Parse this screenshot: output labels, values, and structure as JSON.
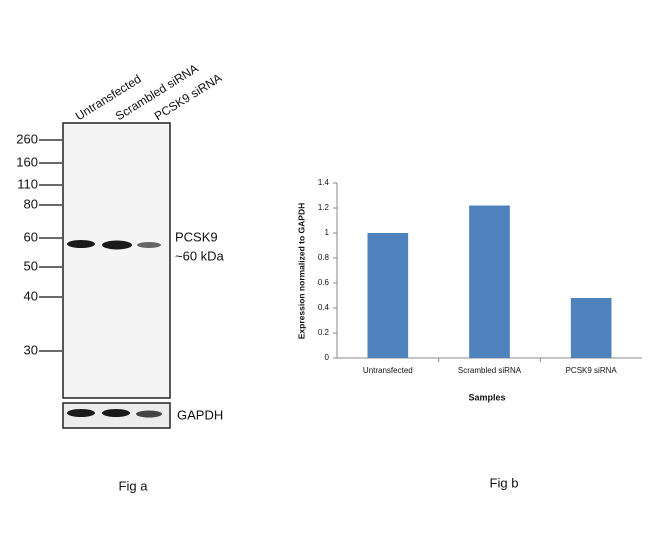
{
  "blot": {
    "lanes": [
      "Untransfected",
      "Scrambled siRNA",
      "PCSK9 siRNA"
    ],
    "markers": [
      260,
      160,
      110,
      80,
      60,
      50,
      40,
      30
    ],
    "band_label": "PCSK9",
    "band_size": "~60 kDa",
    "loading_label": "GAPDH",
    "caption": "Fig a"
  },
  "chart_data": {
    "type": "bar",
    "caption": "Fig b",
    "x_label": "Samples",
    "y_label": "Expression normalized to GAPDH",
    "categories": [
      "Untransfected",
      "Scrambled siRNA",
      "PCSK9 siRNA"
    ],
    "values": [
      1.0,
      1.22,
      0.48
    ],
    "color": "#4f81bd",
    "ylim": [
      0,
      1.4
    ],
    "yticks": [
      0,
      0.2,
      0.4,
      0.6,
      0.8,
      1,
      1.2,
      1.4
    ]
  }
}
